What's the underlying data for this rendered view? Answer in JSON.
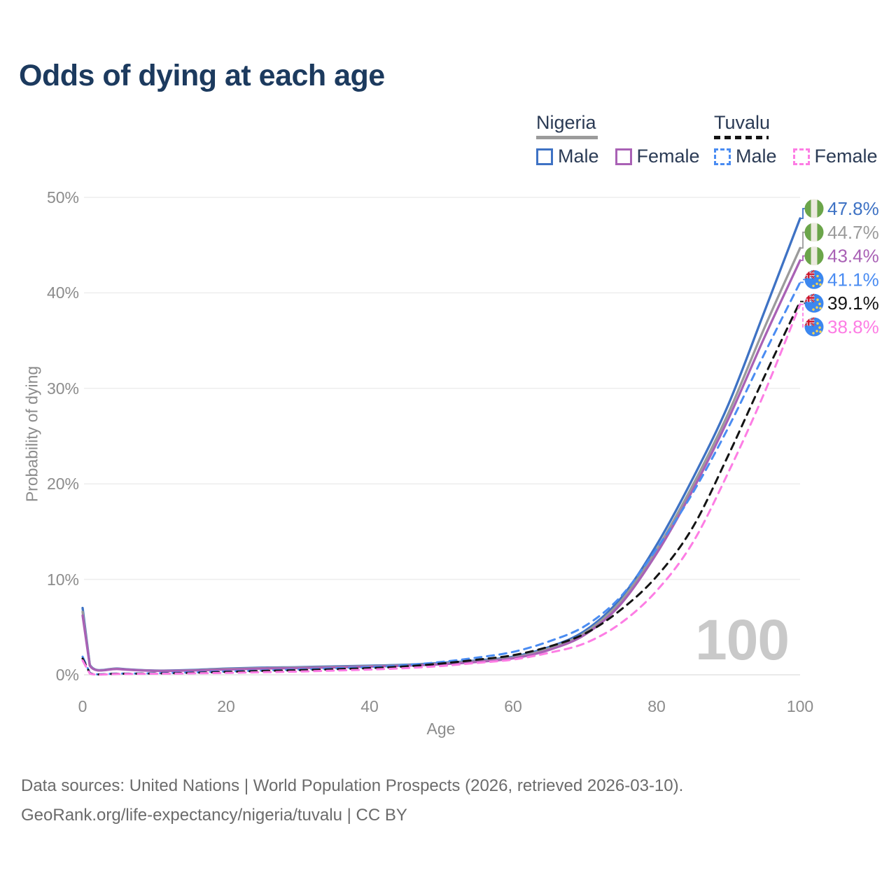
{
  "title": "Odds of dying at each age",
  "legend": {
    "groups": [
      {
        "name": "Nigeria",
        "line_style": "solid",
        "underline_color": "#9b9b9b",
        "items": [
          {
            "label": "Male",
            "color": "#3e72c4",
            "dashed": false
          },
          {
            "label": "Female",
            "color": "#a961b5",
            "dashed": false
          }
        ]
      },
      {
        "name": "Tuvalu",
        "line_style": "dashed",
        "underline_color": "#141414",
        "items": [
          {
            "label": "Male",
            "color": "#4a8cf2",
            "dashed": true
          },
          {
            "label": "Female",
            "color": "#fd7de4",
            "dashed": true
          }
        ]
      }
    ]
  },
  "chart_data": {
    "type": "line",
    "title": "Odds of dying at each age",
    "xlabel": "Age",
    "ylabel": "Probability of dying",
    "xlim": [
      0,
      100
    ],
    "ylim_percent": [
      0,
      50
    ],
    "x_ticks": [
      0,
      20,
      40,
      60,
      80,
      100
    ],
    "y_ticks": [
      {
        "value": 0,
        "label": "0%"
      },
      {
        "value": 10,
        "label": "10%"
      },
      {
        "value": 20,
        "label": "20%"
      },
      {
        "value": 30,
        "label": "30%"
      },
      {
        "value": 40,
        "label": "40%"
      },
      {
        "value": 50,
        "label": "50%"
      }
    ],
    "grid": true,
    "watermark": "100",
    "x": [
      0,
      1,
      5,
      10,
      15,
      20,
      25,
      30,
      35,
      40,
      45,
      50,
      55,
      60,
      65,
      70,
      75,
      80,
      85,
      90,
      95,
      100
    ],
    "series": [
      {
        "name": "Nigeria Male",
        "country": "Nigeria",
        "sex": "Male",
        "color": "#3e72c4",
        "dashed": false,
        "flag": "nigeria",
        "end_label": "47.8%",
        "values": [
          7.0,
          1.05,
          0.65,
          0.45,
          0.5,
          0.65,
          0.75,
          0.8,
          0.88,
          0.95,
          1.05,
          1.25,
          1.5,
          1.9,
          2.9,
          4.6,
          8.0,
          13.6,
          20.5,
          28.3,
          38.0,
          47.8
        ]
      },
      {
        "name": "Nigeria",
        "country": "Nigeria",
        "sex": "Both",
        "color": "#9b9b9b",
        "dashed": false,
        "flag": "nigeria",
        "end_label": "44.7%",
        "values": [
          6.6,
          1.0,
          0.62,
          0.43,
          0.47,
          0.6,
          0.7,
          0.75,
          0.82,
          0.9,
          1.0,
          1.18,
          1.42,
          1.8,
          2.75,
          4.4,
          7.7,
          13.1,
          19.8,
          27.4,
          36.3,
          44.7
        ]
      },
      {
        "name": "Nigeria Female",
        "country": "Nigeria",
        "sex": "Female",
        "color": "#a961b5",
        "dashed": false,
        "flag": "nigeria",
        "end_label": "43.4%",
        "values": [
          6.2,
          0.95,
          0.6,
          0.42,
          0.45,
          0.55,
          0.65,
          0.7,
          0.77,
          0.85,
          0.95,
          1.1,
          1.35,
          1.72,
          2.6,
          4.2,
          7.4,
          12.7,
          19.3,
          26.8,
          35.3,
          43.4
        ]
      },
      {
        "name": "Tuvalu Male",
        "country": "Tuvalu",
        "sex": "Male",
        "color": "#4a8cf2",
        "dashed": true,
        "flag": "tuvalu",
        "end_label": "41.1%",
        "values": [
          1.9,
          0.2,
          0.13,
          0.16,
          0.25,
          0.35,
          0.45,
          0.55,
          0.68,
          0.8,
          1.0,
          1.35,
          1.8,
          2.4,
          3.5,
          5.1,
          8.2,
          13.2,
          19.0,
          25.9,
          33.6,
          41.1
        ]
      },
      {
        "name": "Tuvalu",
        "country": "Tuvalu",
        "sex": "Both",
        "color": "#141414",
        "dashed": true,
        "flag": "tuvalu",
        "end_label": "39.1%",
        "values": [
          1.7,
          0.17,
          0.11,
          0.14,
          0.2,
          0.3,
          0.4,
          0.48,
          0.58,
          0.7,
          0.88,
          1.18,
          1.58,
          2.05,
          2.95,
          4.3,
          6.8,
          10.3,
          15.4,
          23.0,
          31.2,
          39.1
        ]
      },
      {
        "name": "Tuvalu Female",
        "country": "Tuvalu",
        "sex": "Female",
        "color": "#fd7de4",
        "dashed": true,
        "flag": "tuvalu",
        "end_label": "38.8%",
        "values": [
          1.5,
          0.13,
          0.09,
          0.11,
          0.15,
          0.2,
          0.27,
          0.34,
          0.44,
          0.55,
          0.7,
          0.92,
          1.25,
          1.6,
          2.3,
          3.3,
          5.4,
          8.8,
          13.8,
          21.2,
          29.5,
          38.8
        ]
      }
    ],
    "legend_position": "top-right"
  },
  "footer": {
    "line1": "Data sources: United Nations | World Population Prospects (2026, retrieved 2026-03-10).",
    "line2": "GeoRank.org/life-expectancy/nigeria/tuvalu | CC BY"
  }
}
